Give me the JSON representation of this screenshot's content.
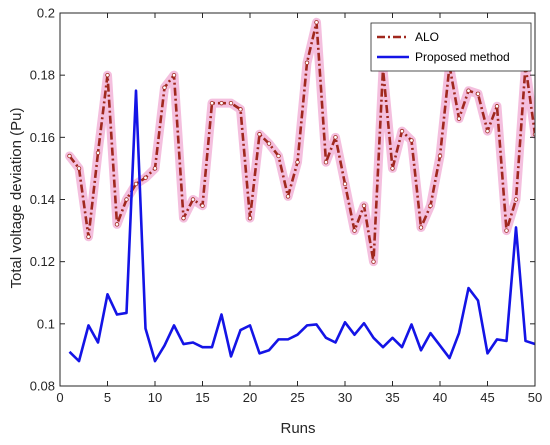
{
  "chart_data": {
    "type": "line",
    "title": "",
    "xlabel": "Runs",
    "ylabel": "Total voltage deviation (Pu)",
    "xlim": [
      0,
      50
    ],
    "ylim": [
      0.08,
      0.2
    ],
    "xticks": [
      0,
      5,
      10,
      15,
      20,
      25,
      30,
      35,
      40,
      45,
      50
    ],
    "xtick_labels": [
      "0",
      "5",
      "10",
      "15",
      "20",
      "25",
      "30",
      "35",
      "40",
      "45",
      "50"
    ],
    "yticks": [
      0.08,
      0.1,
      0.12,
      0.14,
      0.16,
      0.18,
      0.2
    ],
    "ytick_labels": [
      "0.08",
      "0.1",
      "0.12",
      "0.14",
      "0.16",
      "0.18",
      "0.2"
    ],
    "grid": false,
    "legend_position": "top-right",
    "x": [
      1,
      2,
      3,
      4,
      5,
      6,
      7,
      8,
      9,
      10,
      11,
      12,
      13,
      14,
      15,
      16,
      17,
      18,
      19,
      20,
      21,
      22,
      23,
      24,
      25,
      26,
      27,
      28,
      29,
      30,
      31,
      32,
      33,
      34,
      35,
      36,
      37,
      38,
      39,
      40,
      41,
      42,
      43,
      44,
      45,
      46,
      47,
      48,
      49,
      50
    ],
    "series": [
      {
        "name": "ALO",
        "color": "#a0281e",
        "glow_color": "#f2b4d8",
        "style": "dash-dot",
        "values": [
          0.154,
          0.15,
          0.128,
          0.155,
          0.18,
          0.132,
          0.14,
          0.145,
          0.147,
          0.15,
          0.176,
          0.18,
          0.134,
          0.14,
          0.138,
          0.171,
          0.171,
          0.171,
          0.169,
          0.134,
          0.161,
          0.158,
          0.154,
          0.141,
          0.152,
          0.184,
          0.197,
          0.152,
          0.16,
          0.145,
          0.13,
          0.138,
          0.12,
          0.182,
          0.15,
          0.162,
          0.159,
          0.131,
          0.138,
          0.154,
          0.183,
          0.166,
          0.175,
          0.174,
          0.162,
          0.17,
          0.13,
          0.14,
          0.183,
          0.161
        ]
      },
      {
        "name": "Proposed method",
        "color": "#1414e6",
        "style": "solid",
        "values": [
          0.091,
          0.088,
          0.0995,
          0.094,
          0.1095,
          0.103,
          0.1035,
          0.175,
          0.0985,
          0.088,
          0.093,
          0.0995,
          0.0935,
          0.094,
          0.0925,
          0.0925,
          0.103,
          0.0895,
          0.098,
          0.0995,
          0.0905,
          0.0915,
          0.095,
          0.095,
          0.0965,
          0.0995,
          0.0998,
          0.0955,
          0.094,
          0.1005,
          0.0965,
          0.1002,
          0.0955,
          0.0925,
          0.0955,
          0.0925,
          0.0998,
          0.0915,
          0.097,
          0.093,
          0.089,
          0.097,
          0.1115,
          0.1075,
          0.0905,
          0.095,
          0.0945,
          0.131,
          0.0945,
          0.0935
        ]
      }
    ]
  }
}
